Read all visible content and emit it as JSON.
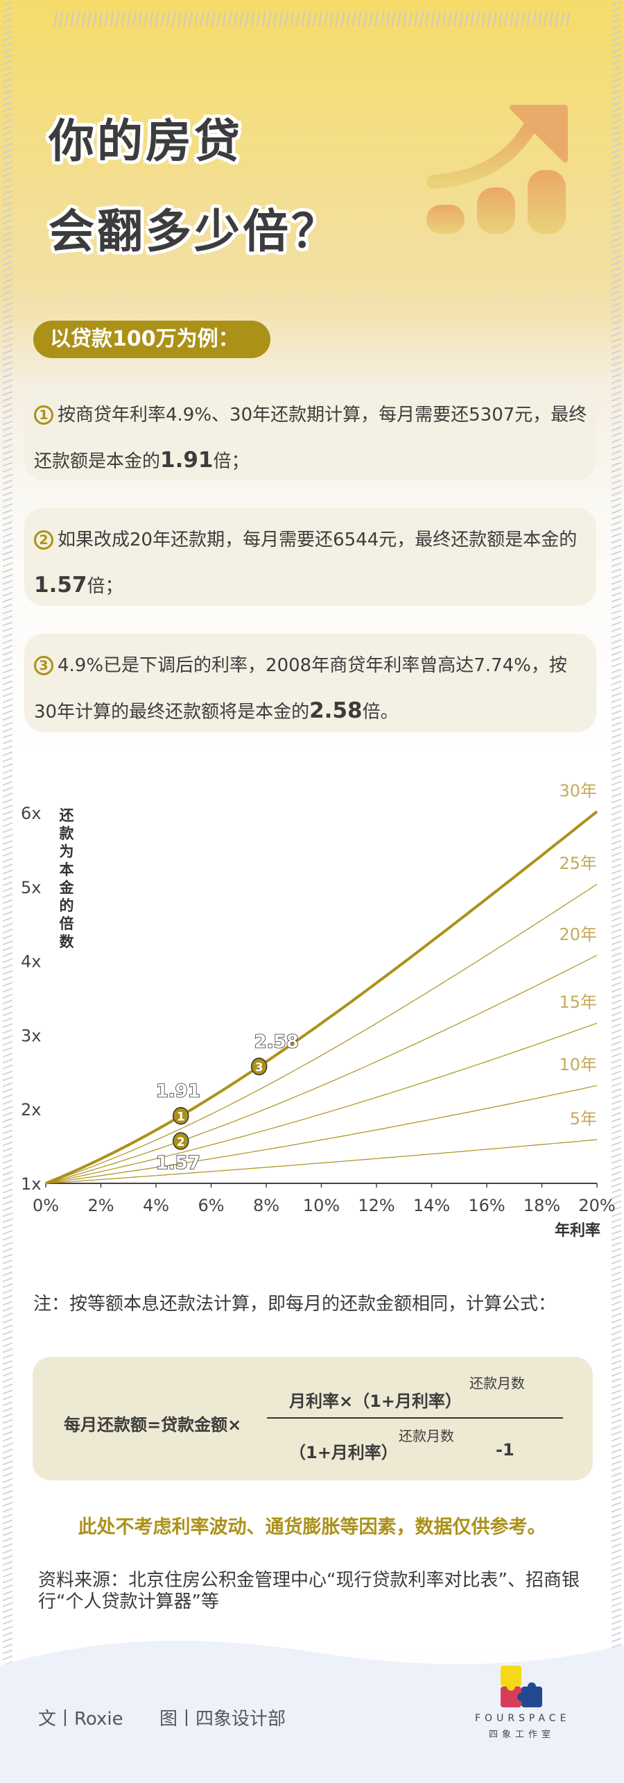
{
  "title": {
    "line1": "你的房贷",
    "line2": "会翻多少倍？"
  },
  "badge": "以贷款100万为例：",
  "cards": [
    {
      "num": "1",
      "pre": "按商贷年利率4.9%、30年还款期计算，每月需要还5307元，最终还款额是本金的",
      "bold": "1.91",
      "post": "倍；"
    },
    {
      "num": "2",
      "pre": "如果改成20年还款期，每月需要还6544元，最终还款额是本金的",
      "bold": "1.57",
      "post": "倍；"
    },
    {
      "num": "3",
      "pre": "4.9%已是下调后的利率，2008年商贷年利率曾高达7.74%，按30年计算的最终还款额将是本金的",
      "bold": "2.58",
      "post": "倍。"
    }
  ],
  "chart_data": {
    "type": "line",
    "xlabel": "年利率",
    "ylabel": "还款为本金的倍数",
    "xlim": [
      0,
      20
    ],
    "ylim": [
      1,
      6
    ],
    "xticks": [
      "0%",
      "2%",
      "4%",
      "6%",
      "8%",
      "10%",
      "12%",
      "14%",
      "16%",
      "18%",
      "20%"
    ],
    "yticks": [
      "1x",
      "2x",
      "3x",
      "4x",
      "5x",
      "6x"
    ],
    "series": [
      {
        "name": "30年",
        "years": 30
      },
      {
        "name": "25年",
        "years": 25
      },
      {
        "name": "20年",
        "years": 20
      },
      {
        "name": "15年",
        "years": 15
      },
      {
        "name": "10年",
        "years": 10
      },
      {
        "name": "5年",
        "years": 5
      }
    ],
    "annotations": [
      {
        "num": "1",
        "rate": 4.9,
        "years": 30,
        "value": "1.91"
      },
      {
        "num": "2",
        "rate": 4.9,
        "years": 20,
        "value": "1.57"
      },
      {
        "num": "3",
        "rate": 7.74,
        "years": 30,
        "value": "2.58"
      }
    ],
    "color": "#ac9119",
    "grid": false
  },
  "note": "注：按等额本息还款法计算，即每月的还款金额相同，计算公式：",
  "formula": {
    "lhs": "每月还款额=贷款金额×",
    "num": "月利率×（1+月利率）",
    "num_exp": "还款月数",
    "den": "（1+月利率）",
    "den_exp": "还款月数",
    "den_minus": "-1"
  },
  "disclaimer": "此处不考虑利率波动、通货膨胀等因素，数据仅供参考。",
  "source": "资料来源：北京住房公积金管理中心“现行贷款利率对比表”、招商银行“个人贷款计算器”等",
  "footer": {
    "author": "文丨Roxie",
    "design": "图丨四象设计部",
    "logo_en": "FOURSPACE",
    "logo_cn": "四象工作室"
  }
}
